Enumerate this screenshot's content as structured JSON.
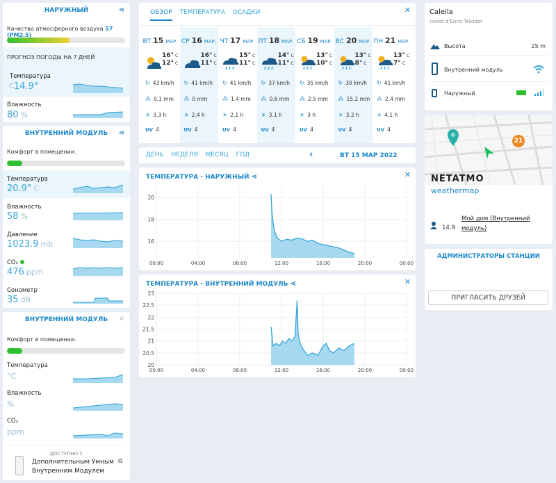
{
  "outdoor": {
    "title": "НАРУЖНЫЙ",
    "aq_label": "Качество атмосферного воздуха",
    "aq_value": "57",
    "aq_unit": "(PM2.5)",
    "aq_level": 0.53,
    "forecast_label": "ПРОГНОЗ ПОГОДЫ НА 7 ДНЕЙ",
    "temp_label": "Температура",
    "temp_value": "14.9°",
    "temp_unit": "C",
    "hum_label": "Влажность",
    "hum_value": "80",
    "hum_unit": "%"
  },
  "indoor1": {
    "title": "ВНУТРЕННИЙ МОДУЛЬ",
    "comfort_label": "Комфорт в помещении.",
    "comfort_level": 0.13,
    "temp_label": "Температура",
    "temp_value": "20.9°",
    "temp_unit": "C",
    "hum_label": "Влажность",
    "hum_value": "58",
    "hum_unit": "%",
    "press_label": "Давление",
    "press_value": "1023.9",
    "press_unit": "mb",
    "co2_label": "CO₂",
    "co2_value": "476",
    "co2_unit": "ppm",
    "noise_label": "Сонометр",
    "noise_value": "35",
    "noise_unit": "dB"
  },
  "indoor2": {
    "title": "ВНУТРЕННИЙ МОДУЛЬ",
    "comfort_label": "Комфорт в помещении.",
    "comfort_level": 0.13,
    "temp_label": "Температура",
    "temp_unit": "°C",
    "hum_label": "Влажность",
    "hum_unit": "%",
    "co2_label": "CO₂",
    "co2_unit": "ppm",
    "avail_label": "ДОСТУПНО С",
    "avail_link": "Дополнительным Умным Внутренним Модулем"
  },
  "forecast": {
    "tabs": [
      "ОБЗОР",
      "ТЕМПЕРАТУРА",
      "ОСАДКИ"
    ],
    "days": [
      {
        "dow": "ВТ",
        "num": "15",
        "mon": "МАР.",
        "hi": "16°",
        "lo": "12°",
        "wind": "43 km/h",
        "rain": "0.1 mm",
        "sun": "3.3 h",
        "uv": "4",
        "icon": "sun-cloud"
      },
      {
        "dow": "СР",
        "num": "16",
        "mon": "МАР.",
        "hi": "16°",
        "lo": "11°",
        "wind": "41 km/h",
        "rain": "0 mm",
        "sun": "2.4 h",
        "uv": "4",
        "icon": "cloud"
      },
      {
        "dow": "ЧТ",
        "num": "17",
        "mon": "МАР.",
        "hi": "15°",
        "lo": "11°",
        "wind": "41 km/h",
        "rain": "1.4 mm",
        "sun": "2.1 h",
        "uv": "4",
        "icon": "rain"
      },
      {
        "dow": "ПТ",
        "num": "18",
        "mon": "МАР.",
        "hi": "14°",
        "lo": "11°",
        "wind": "37 km/h",
        "rain": "0.6 mm",
        "sun": "3.1 h",
        "uv": "4",
        "icon": "rain"
      },
      {
        "dow": "СБ",
        "num": "19",
        "mon": "МАР.",
        "hi": "13°",
        "lo": "10°",
        "wind": "35 km/h",
        "rain": "2.5 mm",
        "sun": "3 h",
        "uv": "4",
        "icon": "sun-rain"
      },
      {
        "dow": "ВС",
        "num": "20",
        "mon": "МАР.",
        "hi": "13°",
        "lo": "8°",
        "wind": "30 km/h",
        "rain": "15.2 mm",
        "sun": "3.2 h",
        "uv": "4",
        "icon": "sun-rain"
      },
      {
        "dow": "ПН",
        "num": "21",
        "mon": "МАР.",
        "hi": "13°",
        "lo": "7°",
        "wind": "41 km/h",
        "rain": "2.4 mm",
        "sun": "4.1 h",
        "uv": "4",
        "icon": "sun-rain"
      }
    ],
    "unit_c": "C",
    "uv_label": "UV"
  },
  "period": {
    "tabs": [
      "ДЕНЬ",
      "НЕДЕЛЯ",
      "МЕСЯЦ",
      "ГОД"
    ],
    "date": "ВТ 15 МАР 2022"
  },
  "chart_data": [
    {
      "type": "area",
      "title": "ТЕМПЕРАТУРА - НАРУЖНЫЙ",
      "x_ticks": [
        "00:00",
        "04:00",
        "08:00",
        "12:00",
        "16:00",
        "20:00",
        "00:00"
      ],
      "y_ticks": [
        16,
        18,
        20
      ],
      "ylim": [
        14.5,
        21
      ],
      "x_hours": [
        11.0,
        11.1,
        11.3,
        11.6,
        12.0,
        12.5,
        13.0,
        13.5,
        14.0,
        14.5,
        15.0,
        15.5,
        16.0,
        16.5,
        17.0,
        17.5,
        18.0,
        18.5,
        19.0
      ],
      "values": [
        20.3,
        18.5,
        17.0,
        16.3,
        16.0,
        16.2,
        16.1,
        16.3,
        16.2,
        16.0,
        16.1,
        15.8,
        15.7,
        15.6,
        15.5,
        15.4,
        15.2,
        15.0,
        14.9
      ]
    },
    {
      "type": "area",
      "title": "ТЕМПЕРАТУРА - ВНУТРЕННИЙ МОДУЛЬ",
      "x_ticks": [
        "00:00",
        "04:00",
        "08:00",
        "12:00",
        "16:00",
        "20:00",
        "00:00"
      ],
      "y_ticks": [
        20,
        20.5,
        21,
        21.5,
        22,
        22.5,
        23
      ],
      "ylim": [
        20,
        23
      ],
      "x_hours": [
        11.0,
        11.2,
        11.5,
        11.8,
        12.1,
        12.4,
        12.7,
        13.0,
        13.3,
        13.5,
        13.6,
        13.8,
        14.0,
        14.5,
        15.0,
        15.5,
        16.0,
        16.3,
        16.6,
        17.0,
        17.5,
        18.0,
        18.5,
        19.0
      ],
      "values": [
        21.6,
        20.8,
        20.9,
        20.8,
        21.0,
        20.9,
        21.1,
        21.0,
        21.2,
        22.7,
        21.3,
        20.9,
        20.7,
        20.4,
        20.5,
        20.4,
        20.8,
        20.9,
        20.6,
        20.5,
        20.7,
        20.6,
        20.8,
        20.9
      ]
    }
  ],
  "station": {
    "name": "Calella",
    "address": "carrer d'Enric Teixidor",
    "alt_label": "Высота",
    "alt_value": "25 m",
    "indoor_label": "Внутренний модуль",
    "outdoor_label": "Наружный"
  },
  "map": {
    "brand": "NETATMO",
    "sub": "weathermap",
    "marker_value": "21",
    "dot_value": "14.9",
    "link": "Мой дом (Внутренний модуль)"
  },
  "admins": {
    "title": "АДМИНИСТРАТОРЫ СТАНЦИИ",
    "invite": "ПРИГЛАСИТЬ ДРУЗЕЙ"
  },
  "colors": {
    "accent": "#1c87c9",
    "fill": "#a6d8f0",
    "green": "#2ec02e"
  }
}
